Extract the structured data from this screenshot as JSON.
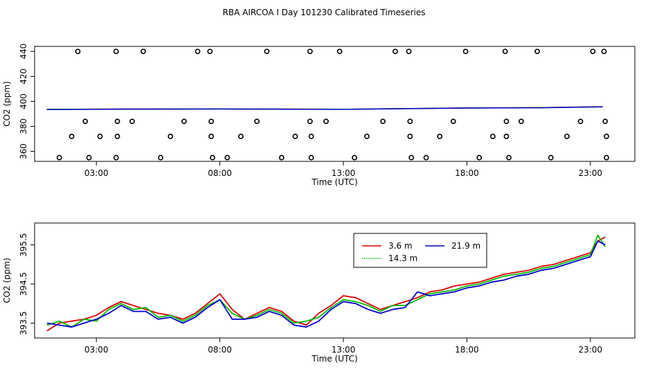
{
  "title": "RBA AIRCOA I  Day 101230  Calibrated Timeseries",
  "colors": {
    "red": "#dd0000",
    "green": "#00bb00",
    "blue": "#0000cc",
    "black": "#000000"
  },
  "chart_data": [
    {
      "type": "scatter",
      "panel": "top",
      "xlabel": "Time (UTC)",
      "ylabel": "CO2 (ppm)",
      "xlim": [
        0.5,
        24.8
      ],
      "ylim": [
        352,
        444
      ],
      "x_ticks": [
        3,
        8,
        13,
        18,
        23
      ],
      "x_tick_labels": [
        "03:00",
        "08:00",
        "13:00",
        "18:00",
        "23:00"
      ],
      "y_ticks": [
        360,
        380,
        400,
        420,
        440
      ],
      "y_tick_labels": [
        "360",
        "380",
        "400",
        "420",
        "440"
      ],
      "series": [
        {
          "marker": "open-circle",
          "color": "#000000",
          "x": [
            1.5,
            2.0,
            2.55,
            2.25,
            3.15,
            2.7,
            3.8,
            3.85,
            3.85,
            3.8,
            4.45,
            4.9,
            5.6,
            6.0,
            6.55,
            7.1,
            7.6,
            7.65,
            7.65,
            7.7,
            8.3,
            8.85,
            9.5,
            9.9,
            10.5,
            11.05,
            11.65,
            11.65,
            11.7,
            11.7,
            12.3,
            12.85,
            13.45,
            13.95,
            14.6,
            15.1,
            15.65,
            15.7,
            15.7,
            15.75,
            16.35,
            16.9,
            17.45,
            17.95,
            18.5,
            19.05,
            19.55,
            19.6,
            19.6,
            19.7,
            20.2,
            20.85,
            21.4,
            22.05,
            22.6,
            23.1,
            23.55,
            23.6,
            23.65,
            23.65
          ],
          "y": [
            355,
            372,
            384,
            440,
            372,
            355,
            440,
            384,
            372,
            355,
            384,
            440,
            355,
            372,
            384,
            440,
            440,
            384,
            372,
            355,
            355,
            372,
            384,
            440,
            355,
            372,
            440,
            384,
            372,
            355,
            384,
            440,
            355,
            372,
            384,
            440,
            440,
            384,
            372,
            355,
            355,
            372,
            384,
            440,
            355,
            372,
            440,
            384,
            372,
            355,
            384,
            440,
            355,
            372,
            384,
            440,
            440,
            384,
            372,
            355
          ]
        },
        {
          "name": "3.6 m",
          "type": "line",
          "color": "#dd0000",
          "x": [
            1.0,
            4.0,
            8.0,
            13.0,
            18.0,
            21.0,
            23.0,
            23.5
          ],
          "y": [
            393.6,
            393.9,
            394.0,
            393.7,
            394.8,
            395.0,
            395.6,
            395.8
          ]
        },
        {
          "name": "14.3 m",
          "type": "line",
          "color": "#00bb00",
          "x": [
            1.0,
            4.0,
            8.0,
            13.0,
            18.0,
            21.0,
            23.0,
            23.5
          ],
          "y": [
            393.6,
            393.8,
            393.9,
            393.7,
            394.7,
            395.0,
            395.5,
            395.7
          ]
        },
        {
          "name": "21.9 m",
          "type": "line",
          "color": "#0000cc",
          "x": [
            1.0,
            4.0,
            8.0,
            13.0,
            18.0,
            21.0,
            23.0,
            23.5
          ],
          "y": [
            393.5,
            393.8,
            393.9,
            393.6,
            394.7,
            394.9,
            395.5,
            395.6
          ]
        }
      ]
    },
    {
      "type": "line",
      "panel": "bottom",
      "xlabel": "Time (UTC)",
      "ylabel": "CO2 (ppm)",
      "xlim": [
        0.5,
        24.8
      ],
      "ylim": [
        393.12,
        396.06
      ],
      "x_ticks": [
        3,
        8,
        13,
        18,
        23
      ],
      "x_tick_labels": [
        "03:00",
        "08:00",
        "13:00",
        "18:00",
        "23:00"
      ],
      "y_ticks": [
        393.5,
        394.5,
        395.5
      ],
      "y_tick_labels": [
        "393.5",
        "394.5",
        "395.5"
      ],
      "legend": {
        "position": "top-right",
        "items": [
          {
            "label": "3.6 m",
            "color": "#dd0000",
            "style": "solid"
          },
          {
            "label": "21.9 m",
            "color": "#0000cc",
            "style": "solid"
          },
          {
            "label": "14.3 m",
            "color": "#00bb00",
            "style": "dotted"
          }
        ]
      },
      "series": [
        {
          "name": "3.6 m",
          "color": "#dd0000",
          "x": [
            1.0,
            1.5,
            2.0,
            2.5,
            3.0,
            3.5,
            4.0,
            4.5,
            5.0,
            5.5,
            6.0,
            6.5,
            7.0,
            7.5,
            8.0,
            8.5,
            9.0,
            9.5,
            10.0,
            10.5,
            11.0,
            11.5,
            12.0,
            12.5,
            13.0,
            13.5,
            14.0,
            14.5,
            15.0,
            15.5,
            16.0,
            16.5,
            17.0,
            17.5,
            18.0,
            18.5,
            19.0,
            19.5,
            20.0,
            20.5,
            21.0,
            21.5,
            22.0,
            22.5,
            23.0,
            23.3,
            23.6
          ],
          "y": [
            393.3,
            393.5,
            393.55,
            393.6,
            393.7,
            393.9,
            394.05,
            393.95,
            393.85,
            393.75,
            393.7,
            393.6,
            393.75,
            394.0,
            394.25,
            393.85,
            393.6,
            393.75,
            393.9,
            393.8,
            393.55,
            393.45,
            393.75,
            393.95,
            394.2,
            394.15,
            394.0,
            393.85,
            393.95,
            394.05,
            394.15,
            394.3,
            394.35,
            394.45,
            394.5,
            394.55,
            394.65,
            394.75,
            394.8,
            394.85,
            394.95,
            395.0,
            395.1,
            395.2,
            395.3,
            395.6,
            395.7
          ]
        },
        {
          "name": "14.3 m",
          "color": "#00bb00",
          "x": [
            1.0,
            1.5,
            2.0,
            2.5,
            3.0,
            3.5,
            4.0,
            4.5,
            5.0,
            5.5,
            6.0,
            6.5,
            7.0,
            7.5,
            8.0,
            8.5,
            9.0,
            9.5,
            10.0,
            10.5,
            11.0,
            11.5,
            12.0,
            12.5,
            13.0,
            13.5,
            14.0,
            14.5,
            15.0,
            15.5,
            16.0,
            16.5,
            17.0,
            17.5,
            18.0,
            18.5,
            19.0,
            19.5,
            20.0,
            20.5,
            21.0,
            21.5,
            22.0,
            22.5,
            23.0,
            23.3,
            23.6
          ],
          "y": [
            393.45,
            393.55,
            393.4,
            393.6,
            393.55,
            393.85,
            394.0,
            393.85,
            393.9,
            393.65,
            393.7,
            393.55,
            393.7,
            393.95,
            394.1,
            393.75,
            393.6,
            393.7,
            393.85,
            393.75,
            393.5,
            393.55,
            393.65,
            393.9,
            394.1,
            394.05,
            393.95,
            393.8,
            393.95,
            393.95,
            394.1,
            394.25,
            394.3,
            394.35,
            394.45,
            394.5,
            394.6,
            394.7,
            394.75,
            394.8,
            394.9,
            394.95,
            395.05,
            395.15,
            395.25,
            395.75,
            395.45
          ]
        },
        {
          "name": "21.9 m",
          "color": "#0000cc",
          "x": [
            1.0,
            1.5,
            2.0,
            2.5,
            3.0,
            3.5,
            4.0,
            4.5,
            5.0,
            5.5,
            6.0,
            6.5,
            7.0,
            7.5,
            8.0,
            8.5,
            9.0,
            9.5,
            10.0,
            10.5,
            11.0,
            11.5,
            12.0,
            12.5,
            13.0,
            13.5,
            14.0,
            14.5,
            15.0,
            15.5,
            16.0,
            16.5,
            17.0,
            17.5,
            18.0,
            18.5,
            19.0,
            19.5,
            20.0,
            20.5,
            21.0,
            21.5,
            22.0,
            22.5,
            23.0,
            23.3,
            23.6
          ],
          "y": [
            393.5,
            393.45,
            393.4,
            393.5,
            393.6,
            393.75,
            393.95,
            393.8,
            393.8,
            393.6,
            393.65,
            393.5,
            393.65,
            393.9,
            394.1,
            393.6,
            393.6,
            393.65,
            393.8,
            393.7,
            393.45,
            393.4,
            393.55,
            393.85,
            394.05,
            394.0,
            393.85,
            393.75,
            393.85,
            393.9,
            394.3,
            394.2,
            394.25,
            394.3,
            394.4,
            394.45,
            394.55,
            394.6,
            394.7,
            394.75,
            394.85,
            394.9,
            395.0,
            395.1,
            395.2,
            395.6,
            395.5
          ]
        }
      ]
    }
  ]
}
